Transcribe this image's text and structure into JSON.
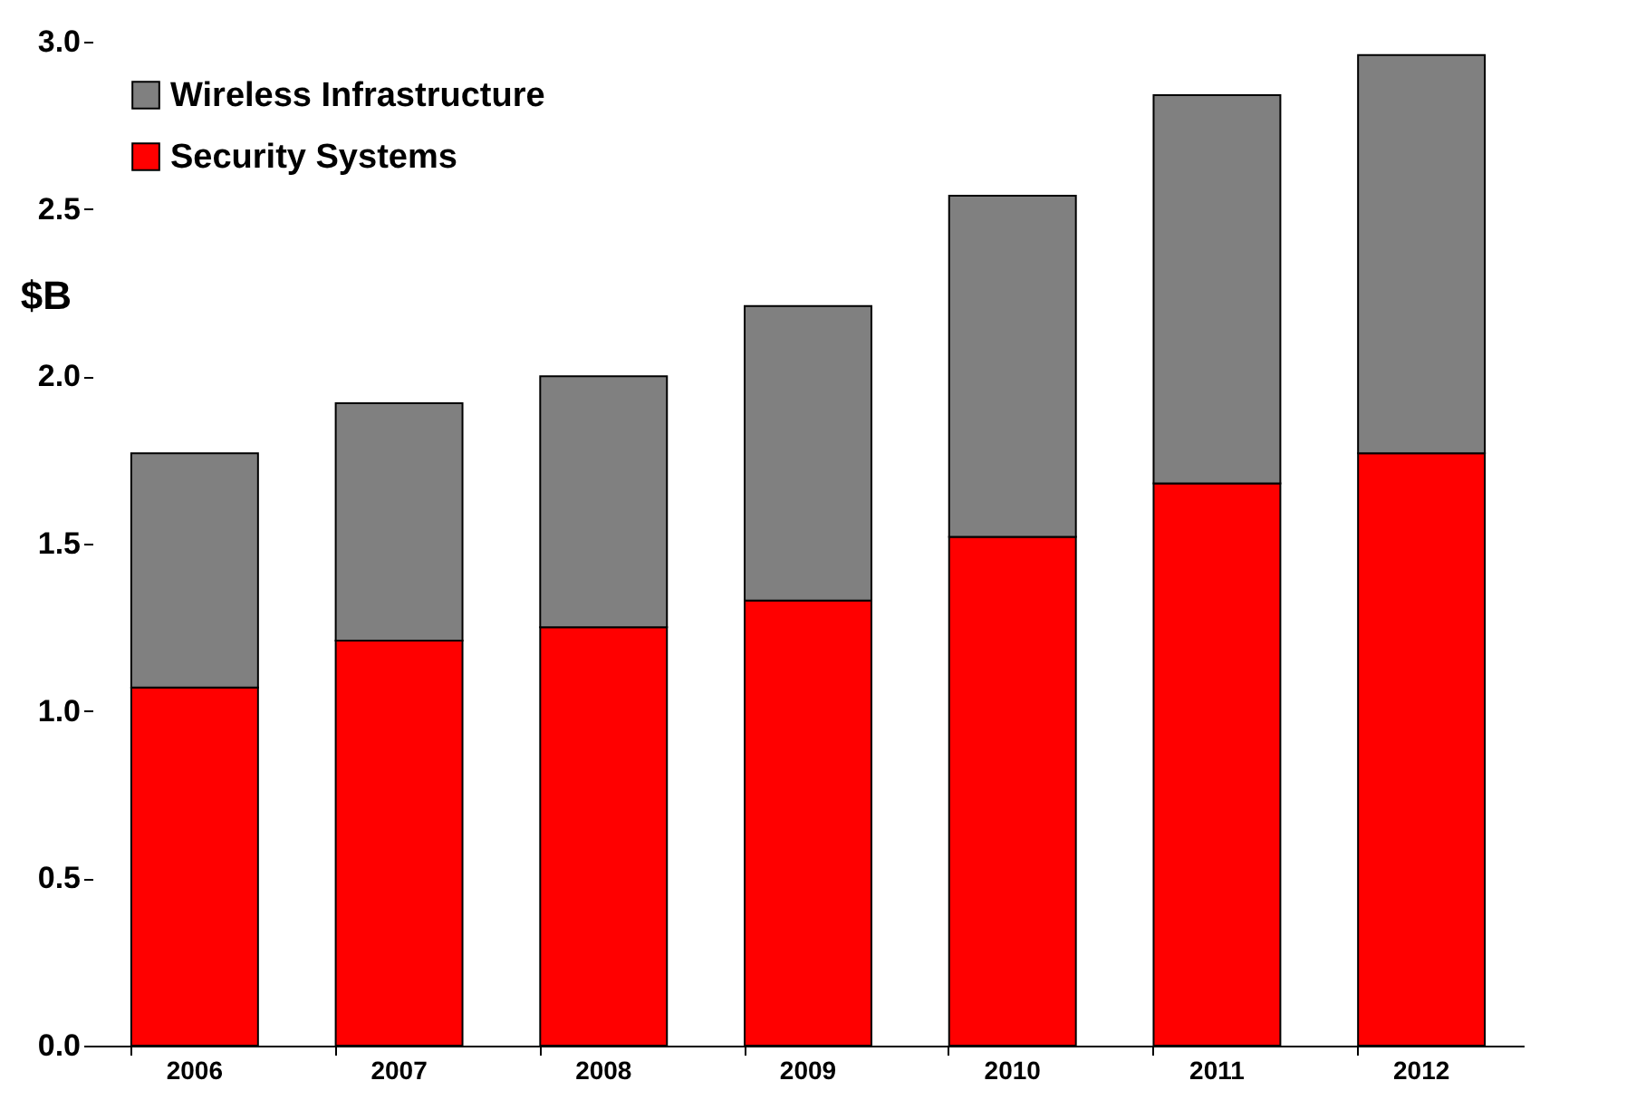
{
  "chart_data": {
    "type": "bar",
    "stacked": true,
    "ylabel": "$B",
    "legend": "top left",
    "categories": [
      "2006",
      "2007",
      "2008",
      "2009",
      "2010",
      "2011",
      "2012"
    ],
    "series": [
      {
        "name": "Security Systems",
        "color": "#ff0000",
        "values": [
          1.07,
          1.21,
          1.25,
          1.33,
          1.52,
          1.68,
          1.77
        ]
      },
      {
        "name": "Wireless Infrastructure",
        "color": "#808080",
        "values": [
          0.7,
          0.71,
          0.75,
          0.88,
          1.02,
          1.16,
          1.19
        ]
      }
    ],
    "ylim": [
      0,
      3
    ],
    "yticks": [
      {
        "value": 0,
        "label": "0.0"
      },
      {
        "value": 0.5,
        "label": "0.5"
      },
      {
        "value": 1,
        "label": "1.0"
      },
      {
        "value": 1.5,
        "label": "1.5"
      },
      {
        "value": 2,
        "label": "2.0"
      },
      {
        "value": 2.5,
        "label": "2.5"
      },
      {
        "value": 3,
        "label": "3.0"
      }
    ]
  }
}
